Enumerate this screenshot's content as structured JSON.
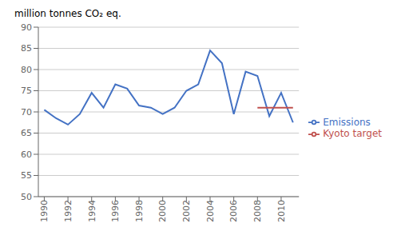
{
  "chart_data": {
    "type": "line",
    "y_label": "million tonnes CO₂ eq.",
    "x": [
      1990,
      1991,
      1992,
      1993,
      1994,
      1995,
      1996,
      1997,
      1998,
      1999,
      2000,
      2001,
      2002,
      2003,
      2004,
      2005,
      2006,
      2007,
      2008,
      2009,
      2010,
      2011
    ],
    "series": [
      {
        "name": "Emissions",
        "color": "#4472C4",
        "values": [
          70.5,
          68.5,
          67.0,
          69.5,
          74.5,
          71.0,
          76.5,
          75.5,
          71.5,
          71.0,
          69.5,
          71.0,
          75.0,
          76.5,
          84.5,
          81.5,
          69.5,
          79.5,
          78.5,
          69.0,
          74.5,
          67.5
        ]
      },
      {
        "name": "Kyoto target",
        "color": "#C0504D",
        "values": [
          null,
          null,
          null,
          null,
          null,
          null,
          null,
          null,
          null,
          null,
          null,
          null,
          null,
          null,
          null,
          null,
          null,
          null,
          71.0,
          71.0,
          71.0,
          71.0
        ]
      }
    ],
    "xlim": [
      1989.5,
      2011.5
    ],
    "xticks": [
      1990,
      1992,
      1994,
      1996,
      1998,
      2000,
      2002,
      2004,
      2006,
      2008,
      2010
    ],
    "ylim": [
      50,
      90
    ],
    "yticks": [
      50,
      55,
      60,
      65,
      70,
      75,
      80,
      85,
      90
    ],
    "grid": "y",
    "legend": "right"
  }
}
